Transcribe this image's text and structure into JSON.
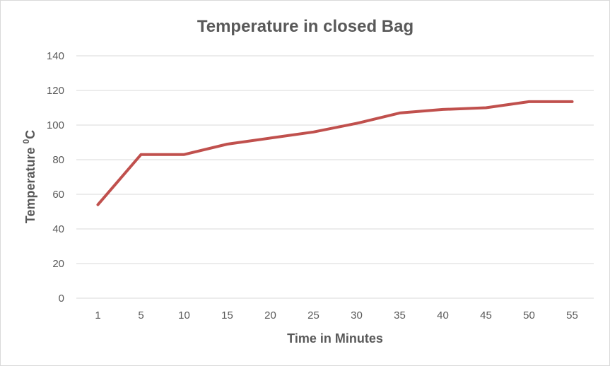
{
  "chart_data": {
    "type": "line",
    "title": "Temperature in closed Bag",
    "xlabel": "Time in Minutes",
    "ylabel": {
      "text": "Temperature ",
      "superscript": "0",
      "unit": "C"
    },
    "categories": [
      "1",
      "5",
      "10",
      "15",
      "20",
      "25",
      "30",
      "35",
      "40",
      "45",
      "50",
      "55"
    ],
    "series": [
      {
        "values": [
          54,
          83,
          83,
          89,
          92.5,
          96,
          101,
          107,
          109,
          110,
          113.5,
          113.5
        ]
      }
    ],
    "ylim": [
      0,
      140
    ],
    "yticks": [
      0,
      20,
      40,
      60,
      80,
      100,
      120,
      140
    ],
    "grid": true,
    "legend": "none",
    "colors": {
      "series": "#c0504d",
      "grid": "#d9d9d9",
      "text": "#595959"
    }
  }
}
